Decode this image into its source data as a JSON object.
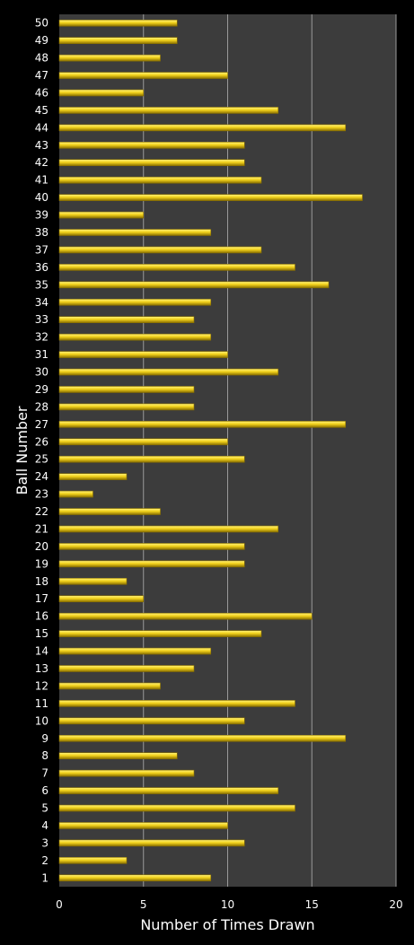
{
  "chart_data": {
    "type": "bar",
    "orientation": "horizontal",
    "xlabel": "Number of Times Drawn",
    "ylabel": "Ball Number",
    "xlim": [
      0,
      20
    ],
    "xticks": [
      0,
      5,
      10,
      15,
      20
    ],
    "grid": "vertical",
    "categories": [
      "1",
      "2",
      "3",
      "4",
      "5",
      "6",
      "7",
      "8",
      "9",
      "10",
      "11",
      "12",
      "13",
      "14",
      "15",
      "16",
      "17",
      "18",
      "19",
      "20",
      "21",
      "22",
      "23",
      "24",
      "25",
      "26",
      "27",
      "28",
      "29",
      "30",
      "31",
      "32",
      "33",
      "34",
      "35",
      "36",
      "37",
      "38",
      "39",
      "40",
      "41",
      "42",
      "43",
      "44",
      "45",
      "46",
      "47",
      "48",
      "49",
      "50"
    ],
    "values": [
      9,
      4,
      11,
      10,
      14,
      13,
      8,
      7,
      17,
      11,
      14,
      6,
      8,
      9,
      12,
      15,
      5,
      4,
      11,
      11,
      13,
      6,
      2,
      4,
      11,
      10,
      17,
      8,
      8,
      13,
      10,
      9,
      8,
      9,
      16,
      14,
      12,
      9,
      5,
      18,
      12,
      11,
      11,
      17,
      13,
      5,
      10,
      6,
      7,
      7
    ],
    "colors": {
      "background": "#000000",
      "plot_area": "#3c3c3c",
      "gridline": "#9a9a9a",
      "bar": "#f2d21c",
      "bar_highlight": "#fff27a",
      "bar_shadow": "#8a7000",
      "text": "#ffffff"
    }
  }
}
